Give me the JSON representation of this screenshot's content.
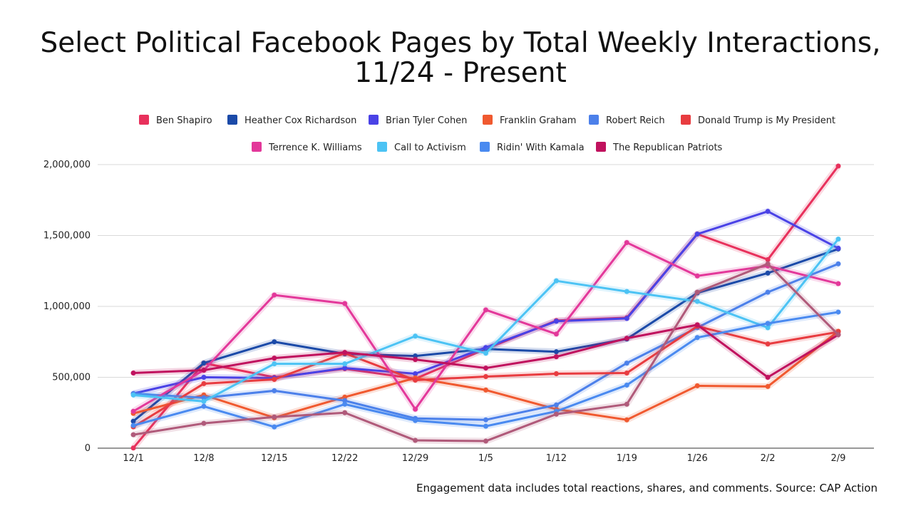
{
  "chart_data": {
    "type": "line",
    "title_line1": "Select Political Facebook Pages by Total Weekly Interactions,",
    "title_line2": "11/24 - Present",
    "source": "Engagement data includes total reactions, shares, and comments. Source: CAP Action",
    "xlabel": "",
    "ylabel": "",
    "categories": [
      "12/1",
      "12/8",
      "12/15",
      "12/22",
      "12/29",
      "1/5",
      "1/12",
      "1/19",
      "1/26",
      "2/2",
      "2/9"
    ],
    "ylim": [
      0,
      2000000
    ],
    "yticks": [
      0,
      500000,
      1000000,
      1500000,
      2000000
    ],
    "ytick_labels": [
      "0",
      "500,000",
      "1,000,000",
      "1,500,000",
      "2,000,000"
    ],
    "grid": true,
    "legend_position": "top",
    "series": [
      {
        "name": "Ben Shapiro",
        "color": "#e8315c",
        "values": [
          1000,
          600000,
          500000,
          560000,
          490000,
          700000,
          900000,
          920000,
          1510000,
          1330000,
          1990000
        ]
      },
      {
        "name": "Heather Cox Richardson",
        "color": "#1b4aa8",
        "values": [
          190000,
          600000,
          750000,
          665000,
          650000,
          700000,
          680000,
          770000,
          1095000,
          1235000,
          1405000
        ]
      },
      {
        "name": "Brian Tyler Cohen",
        "color": "#4a42e6",
        "values": [
          385000,
          500000,
          495000,
          565000,
          525000,
          710000,
          895000,
          915000,
          1510000,
          1670000,
          1410000
        ]
      },
      {
        "name": "Franklin Graham",
        "color": "#f0592f",
        "values": [
          245000,
          375000,
          215000,
          360000,
          495000,
          410000,
          275000,
          200000,
          440000,
          435000,
          825000
        ]
      },
      {
        "name": "Robert Reich",
        "color": "#4c80ea",
        "values": [
          385000,
          355000,
          405000,
          335000,
          210000,
          200000,
          305000,
          600000,
          850000,
          1100000,
          1300000
        ]
      },
      {
        "name": "Donald Trump is My President",
        "color": "#e83c40",
        "values": [
          150000,
          455000,
          485000,
          670000,
          480000,
          505000,
          525000,
          530000,
          860000,
          735000,
          820000
        ]
      },
      {
        "name": "Terrence K. Williams",
        "color": "#e3389a",
        "values": [
          260000,
          550000,
          1080000,
          1020000,
          275000,
          975000,
          805000,
          1450000,
          1215000,
          1285000,
          1160000
        ]
      },
      {
        "name": "Call to Activism",
        "color": "#4cc3f4",
        "values": [
          375000,
          330000,
          595000,
          595000,
          790000,
          670000,
          1180000,
          1105000,
          1035000,
          850000,
          1475000
        ]
      },
      {
        "name": "Ridin' With Kamala",
        "color": "#4a8af0",
        "values": [
          160000,
          295000,
          150000,
          310000,
          195000,
          155000,
          260000,
          445000,
          780000,
          880000,
          960000
        ]
      },
      {
        "name": "The Republican Patriots",
        "color": "#c0125e",
        "values": [
          530000,
          550000,
          635000,
          675000,
          625000,
          565000,
          645000,
          775000,
          870000,
          500000,
          800000
        ]
      },
      {
        "name": "",
        "color": "#b05a7a",
        "values": [
          95000,
          175000,
          220000,
          250000,
          55000,
          50000,
          240000,
          310000,
          1100000,
          1300000,
          800000
        ]
      }
    ]
  }
}
